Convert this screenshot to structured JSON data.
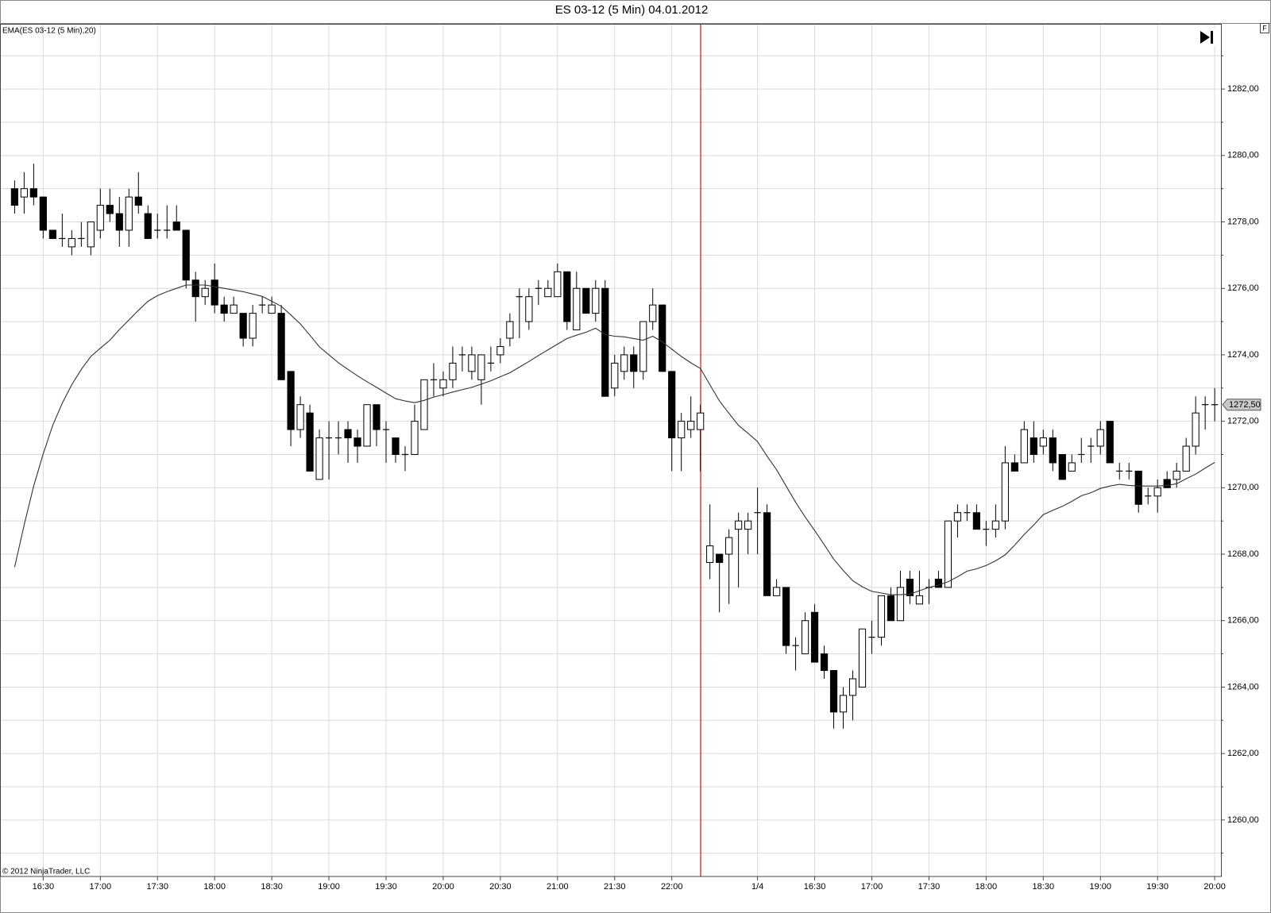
{
  "chart_data": {
    "type": "candlestick",
    "title": "ES 03-12 (5 Min)  04.01.2012",
    "copyright": "© 2012 NinjaTrader, LLC",
    "corner_button": "F",
    "categories": [
      null,
      null,
      null,
      "16:30",
      null,
      null,
      null,
      null,
      null,
      "17:00",
      null,
      null,
      null,
      null,
      null,
      "17:30",
      null,
      null,
      null,
      null,
      null,
      "18:00",
      null,
      null,
      null,
      null,
      null,
      "18:30",
      null,
      null,
      null,
      null,
      null,
      "19:00",
      null,
      null,
      null,
      null,
      null,
      "19:30",
      null,
      null,
      null,
      null,
      null,
      "20:00",
      null,
      null,
      null,
      null,
      null,
      "20:30",
      null,
      null,
      null,
      null,
      null,
      "21:00",
      null,
      null,
      null,
      null,
      null,
      "21:30",
      null,
      null,
      null,
      null,
      null,
      "22:00",
      null,
      null,
      null,
      null,
      null,
      null,
      null,
      null,
      "1/4",
      null,
      null,
      null,
      null,
      null,
      "16:30",
      null,
      null,
      null,
      null,
      null,
      "17:00",
      null,
      null,
      null,
      null,
      null,
      "17:30",
      null,
      null,
      null,
      null,
      null,
      "18:00",
      null,
      null,
      null,
      null,
      null,
      "18:30",
      null,
      null,
      null,
      null,
      null,
      "19:00",
      null,
      null,
      null,
      null,
      null,
      "19:30",
      null,
      null,
      null,
      null,
      null,
      "20:00"
    ],
    "open": [
      1279,
      1278.75,
      1279,
      1278.75,
      1277.75,
      1277.5,
      1277.25,
      1277.5,
      1277.25,
      1277.75,
      1278.5,
      1278.25,
      1277.75,
      1278.75,
      1278.25,
      1277.75,
      1277.75,
      1278,
      1277.75,
      1276.25,
      1275.75,
      1276.25,
      1275.5,
      1275.25,
      1275.25,
      1274.5,
      1275.5,
      1275.25,
      1275.25,
      1273.5,
      1271.75,
      1272.25,
      1270.25,
      1271.5,
      1271.5,
      1271.75,
      1271.5,
      1271.25,
      1272.5,
      1271.75,
      1271.5,
      1271,
      1271,
      1271.75,
      1273.25,
      1273,
      1273.25,
      1274,
      1273.5,
      1273.25,
      1273.75,
      1274,
      1274.5,
      1275.75,
      1275,
      1276,
      1275.75,
      1275.75,
      1276.5,
      1274.75,
      1276,
      1275.25,
      1276,
      1273,
      1273.5,
      1274,
      1273.5,
      1275,
      1275.5,
      1273.5,
      1271.5,
      1271.75,
      1271.75,
      1267.75,
      1268,
      1268,
      1268.75,
      1268.75,
      1269.25,
      1269.25,
      1266.75,
      1267,
      1265.25,
      1265,
      1266.25,
      1265,
      1264.5,
      1263.25,
      1263.75,
      1264,
      1265.5,
      1265.5,
      1266.75,
      1266,
      1267.25,
      1266.5,
      1267,
      1267.25,
      1267,
      1269,
      1269.25,
      1269.25,
      1268.75,
      1268.75,
      1269,
      1270.75,
      1270.75,
      1271.5,
      1271.25,
      1271.5,
      1271,
      1270.5,
      1271,
      1271.25,
      1271.25,
      1272,
      1270.5,
      1270.5,
      1270.5,
      1269.75,
      1269.75,
      1270.25,
      1270.25,
      1270.5,
      1271.25,
      1272.5,
      1272.5
    ],
    "high": [
      1279.25,
      1279.5,
      1279.75,
      1278.75,
      1277.75,
      1278.25,
      1277.75,
      1278,
      1278,
      1279,
      1279,
      1278.75,
      1279,
      1279.5,
      1278.5,
      1278.25,
      1278.5,
      1278.5,
      1277.75,
      1276.5,
      1276.25,
      1276.75,
      1275.75,
      1275.75,
      1275.25,
      1275.5,
      1275.75,
      1275.75,
      1275.5,
      1273.5,
      1272.75,
      1272.5,
      1271.75,
      1272,
      1272,
      1272,
      1271.75,
      1272.5,
      1272.5,
      1272,
      1271.5,
      1271.25,
      1272.5,
      1273.25,
      1273.75,
      1273.5,
      1274.25,
      1274.25,
      1274.25,
      1274,
      1274.25,
      1274.5,
      1275.25,
      1276,
      1276,
      1276.25,
      1276.25,
      1276.75,
      1276.5,
      1276.5,
      1276,
      1276.25,
      1276.25,
      1274,
      1274.25,
      1274.25,
      1275,
      1276,
      1275.5,
      1273.5,
      1272.25,
      1272.75,
      1272.5,
      1269.5,
      1268,
      1268.75,
      1269.25,
      1269.25,
      1270,
      1269.5,
      1267.25,
      1267,
      1265.5,
      1266.25,
      1266.5,
      1265.25,
      1264.5,
      1264,
      1264.5,
      1265.75,
      1266,
      1266.75,
      1267,
      1267.5,
      1267.5,
      1267.5,
      1267.25,
      1267.5,
      1269,
      1269.5,
      1269.5,
      1269.5,
      1269,
      1269.5,
      1271.25,
      1271,
      1272,
      1272,
      1271.75,
      1271.75,
      1271,
      1271,
      1271.5,
      1271.5,
      1272,
      1272,
      1270.75,
      1270.75,
      1270.5,
      1270,
      1270.25,
      1270.5,
      1270.75,
      1271.5,
      1272.75,
      1272.75,
      1273
    ],
    "low": [
      1278.25,
      1278.25,
      1278.5,
      1277.5,
      1277.5,
      1277.25,
      1277,
      1277.25,
      1277,
      1277.5,
      1278,
      1277.25,
      1277.25,
      1278.25,
      1277.5,
      1277.5,
      1277.5,
      1277.75,
      1276,
      1275,
      1275.5,
      1275.25,
      1275,
      1275.25,
      1274.25,
      1274.25,
      1275.25,
      1275.25,
      1273.25,
      1271.25,
      1271.5,
      1270.5,
      1270.25,
      1270.25,
      1271,
      1270.75,
      1270.75,
      1271.25,
      1271.25,
      1270.75,
      1270.75,
      1270.5,
      1271,
      1271.75,
      1272.75,
      1272.75,
      1273,
      1273.5,
      1273.25,
      1272.5,
      1273.5,
      1273.75,
      1274.25,
      1274.5,
      1274.75,
      1275.5,
      1275.75,
      1275.75,
      1274.75,
      1274.75,
      1275.25,
      1275,
      1272.75,
      1272.75,
      1273.25,
      1273,
      1273.25,
      1274.75,
      1273.5,
      1270.5,
      1270.5,
      1271.5,
      1270.5,
      1267.25,
      1266.25,
      1266.5,
      1267,
      1268,
      1268,
      1266.75,
      1266.75,
      1265,
      1264.5,
      1265,
      1264.75,
      1264.25,
      1262.75,
      1262.75,
      1263,
      1264,
      1265,
      1265.25,
      1266,
      1266,
      1266.5,
      1266.5,
      1266.5,
      1267,
      1267,
      1268.5,
      1269,
      1268.75,
      1268.25,
      1268.5,
      1268.75,
      1270.5,
      1270.75,
      1270.75,
      1271,
      1270.5,
      1270.25,
      1270.5,
      1270.75,
      1270.75,
      1271,
      1270.75,
      1270.25,
      1270.25,
      1269.25,
      1269.5,
      1269.25,
      1270,
      1270,
      1270.5,
      1271,
      1271.75,
      1272
    ],
    "close": [
      1278.5,
      1279,
      1278.75,
      1277.75,
      1277.5,
      1277.5,
      1277.5,
      1277.5,
      1278,
      1278.5,
      1278.25,
      1277.75,
      1278.75,
      1278.5,
      1277.5,
      1277.75,
      1277.75,
      1277.75,
      1276.25,
      1275.75,
      1276,
      1275.5,
      1275.25,
      1275.5,
      1274.5,
      1275.25,
      1275.5,
      1275.5,
      1273.25,
      1271.75,
      1272.5,
      1270.5,
      1271.5,
      1271.5,
      1271.5,
      1271.5,
      1271.25,
      1272.5,
      1271.75,
      1271.75,
      1271,
      1271,
      1272,
      1273.25,
      1273.25,
      1273.25,
      1273.75,
      1274,
      1274,
      1274,
      1273.75,
      1274.25,
      1275,
      1275.75,
      1275.75,
      1276,
      1276,
      1276.5,
      1275,
      1276,
      1275.25,
      1276,
      1272.75,
      1273.75,
      1274,
      1273.5,
      1275,
      1275.5,
      1273.5,
      1271.5,
      1272,
      1272,
      1272.25,
      1268.25,
      1267.75,
      1268.5,
      1269,
      1269,
      1269.25,
      1266.75,
      1267,
      1265.25,
      1265.25,
      1266,
      1264.75,
      1264.5,
      1263.25,
      1263.75,
      1264.25,
      1265.75,
      1265.5,
      1266.75,
      1266,
      1267,
      1266.75,
      1266.75,
      1267,
      1267,
      1269,
      1269.25,
      1269.25,
      1268.75,
      1268.75,
      1269,
      1270.75,
      1270.5,
      1271.75,
      1271,
      1271.5,
      1270.75,
      1270.25,
      1270.75,
      1271,
      1271.25,
      1271.75,
      1270.75,
      1270.5,
      1270.5,
      1269.5,
      1269.75,
      1270,
      1270,
      1270.5,
      1271.25,
      1272.25,
      1272.5,
      1272.5
    ],
    "up_color": "#ffffff",
    "down_color": "#000000",
    "candle_outline": "#000000",
    "series": [
      {
        "name": "EMA(ES 03-12 (5 Min),20)",
        "color": "#333333",
        "values": [
          1267.61,
          1268.88,
          1270.05,
          1271.02,
          1271.88,
          1272.54,
          1273.1,
          1273.56,
          1273.95,
          1274.2,
          1274.44,
          1274.76,
          1275.05,
          1275.34,
          1275.61,
          1275.78,
          1275.9,
          1276,
          1276.1,
          1276.1,
          1276.1,
          1276.05,
          1276,
          1275.95,
          1275.9,
          1275.83,
          1275.76,
          1275.61,
          1275.46,
          1275.2,
          1274.93,
          1274.59,
          1274.24,
          1274,
          1273.76,
          1273.56,
          1273.37,
          1273.19,
          1273.02,
          1272.85,
          1272.68,
          1272.61,
          1272.56,
          1272.63,
          1272.73,
          1272.8,
          1272.88,
          1272.95,
          1273.02,
          1273.12,
          1273.22,
          1273.34,
          1273.46,
          1273.63,
          1273.8,
          1273.98,
          1274.15,
          1274.32,
          1274.49,
          1274.59,
          1274.68,
          1274.8,
          1274.61,
          1274.56,
          1274.54,
          1274.49,
          1274.44,
          1274.56,
          1274.39,
          1274.17,
          1273.95,
          1273.76,
          1273.59,
          1273.1,
          1272.61,
          1272.24,
          1271.88,
          1271.64,
          1271.39,
          1270.95,
          1270.54,
          1270.05,
          1269.56,
          1269.12,
          1268.71,
          1268.29,
          1267.85,
          1267.51,
          1267.2,
          1267.02,
          1266.88,
          1266.83,
          1266.78,
          1266.78,
          1266.8,
          1266.9,
          1267,
          1267.07,
          1267.17,
          1267.32,
          1267.49,
          1267.56,
          1267.66,
          1267.8,
          1267.98,
          1268.27,
          1268.59,
          1268.88,
          1269.19,
          1269.32,
          1269.44,
          1269.59,
          1269.76,
          1269.85,
          1269.98,
          1270.05,
          1270.1,
          1270.07,
          1270.05,
          1270.05,
          1270.05,
          1270.07,
          1270.12,
          1270.27,
          1270.41,
          1270.59,
          1270.76
        ]
      }
    ],
    "last_price": {
      "value": 1272.5,
      "label": "1272,50"
    },
    "ylim": [
      1258.3,
      1283.95
    ],
    "yticks": [
      {
        "value": 1260,
        "label": "1260,00"
      },
      {
        "value": 1262,
        "label": "1262,00"
      },
      {
        "value": 1264,
        "label": "1264,00"
      },
      {
        "value": 1266,
        "label": "1266,00"
      },
      {
        "value": 1268,
        "label": "1268,00"
      },
      {
        "value": 1270,
        "label": "1270,00"
      },
      {
        "value": 1272,
        "label": "1272,00"
      },
      {
        "value": 1274,
        "label": "1274,00"
      },
      {
        "value": 1276,
        "label": "1276,00"
      },
      {
        "value": 1278,
        "label": "1278,00"
      },
      {
        "value": 1280,
        "label": "1280,00"
      },
      {
        "value": 1282,
        "label": "1282,00"
      }
    ],
    "y_minor_gridlines": [
      1259,
      1261,
      1263,
      1265,
      1267,
      1269,
      1271,
      1273,
      1275,
      1277,
      1279,
      1281,
      1283
    ],
    "grid": true,
    "grid_color": "#d9d9d9"
  }
}
